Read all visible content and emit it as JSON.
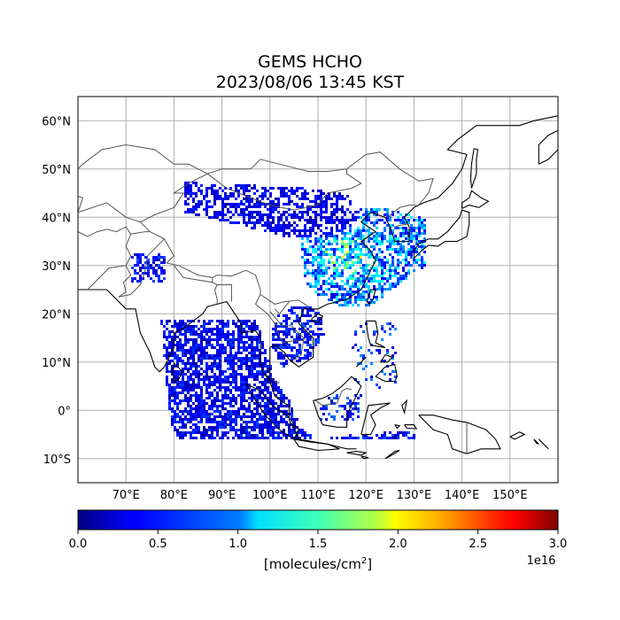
{
  "title_line1": "GEMS HCHO",
  "title_line2": "2023/08/06 13:45 KST",
  "map": {
    "lon_range": [
      60,
      160
    ],
    "lat_range": [
      -15,
      65
    ],
    "lat_ticks": [
      {
        "value": 60,
        "label": "60°N"
      },
      {
        "value": 50,
        "label": "50°N"
      },
      {
        "value": 40,
        "label": "40°N"
      },
      {
        "value": 30,
        "label": "30°N"
      },
      {
        "value": 20,
        "label": "20°N"
      },
      {
        "value": 10,
        "label": "10°N"
      },
      {
        "value": 0,
        "label": "0°"
      },
      {
        "value": -10,
        "label": "10°S"
      }
    ],
    "lon_ticks": [
      {
        "value": 70,
        "label": "70°E"
      },
      {
        "value": 80,
        "label": "80°E"
      },
      {
        "value": 90,
        "label": "90°E"
      },
      {
        "value": 100,
        "label": "100°E"
      },
      {
        "value": 110,
        "label": "110°E"
      },
      {
        "value": 120,
        "label": "120°E"
      },
      {
        "value": 130,
        "label": "130°E"
      },
      {
        "value": 140,
        "label": "140°E"
      },
      {
        "value": 150,
        "label": "150°E"
      }
    ],
    "gridlines": true
  },
  "colorbar": {
    "colormap": "jet",
    "min": 0.0,
    "max": 3.0,
    "ticks": [
      "0.0",
      "0.5",
      "1.0",
      "1.5",
      "2.0",
      "2.5",
      "3.0"
    ],
    "tick_values": [
      0.0,
      0.5,
      1.0,
      1.5,
      2.0,
      2.5,
      3.0
    ],
    "multiplier": "1e16",
    "label": "[molecules/cm",
    "label_sup": "2",
    "label_end": "]"
  }
}
